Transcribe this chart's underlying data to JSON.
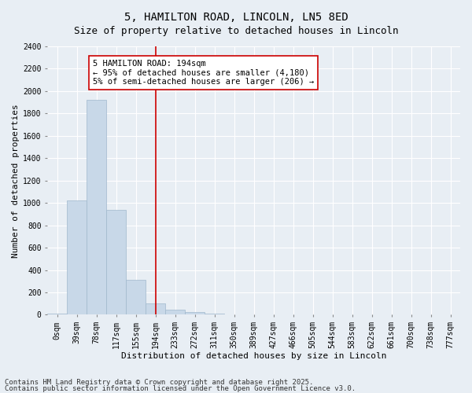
{
  "title": "5, HAMILTON ROAD, LINCOLN, LN5 8ED",
  "subtitle": "Size of property relative to detached houses in Lincoln",
  "xlabel": "Distribution of detached houses by size in Lincoln",
  "ylabel": "Number of detached properties",
  "bar_color": "#c8d8e8",
  "bar_edge_color": "#a0b8cc",
  "categories": [
    "0sqm",
    "39sqm",
    "78sqm",
    "117sqm",
    "155sqm",
    "194sqm",
    "233sqm",
    "272sqm",
    "311sqm",
    "350sqm",
    "389sqm",
    "427sqm",
    "466sqm",
    "505sqm",
    "544sqm",
    "583sqm",
    "622sqm",
    "661sqm",
    "700sqm",
    "738sqm",
    "777sqm"
  ],
  "values": [
    10,
    1025,
    1920,
    935,
    315,
    105,
    45,
    22,
    10,
    2,
    0,
    0,
    0,
    0,
    0,
    0,
    0,
    0,
    0,
    0,
    0
  ],
  "ylim": [
    0,
    2400
  ],
  "yticks": [
    0,
    200,
    400,
    600,
    800,
    1000,
    1200,
    1400,
    1600,
    1800,
    2000,
    2200,
    2400
  ],
  "vline_x": 5,
  "vline_color": "#cc0000",
  "annotation_text": "5 HAMILTON ROAD: 194sqm\n← 95% of detached houses are smaller (4,180)\n5% of semi-detached houses are larger (206) →",
  "annotation_box_color": "#ffffff",
  "annotation_box_edge": "#cc0000",
  "footnote1": "Contains HM Land Registry data © Crown copyright and database right 2025.",
  "footnote2": "Contains public sector information licensed under the Open Government Licence v3.0.",
  "background_color": "#e8eef4",
  "plot_bg_color": "#e8eef4",
  "grid_color": "#ffffff",
  "title_fontsize": 10,
  "subtitle_fontsize": 9,
  "axis_label_fontsize": 8,
  "tick_fontsize": 7,
  "footnote_fontsize": 6.5,
  "annotation_fontsize": 7.5
}
